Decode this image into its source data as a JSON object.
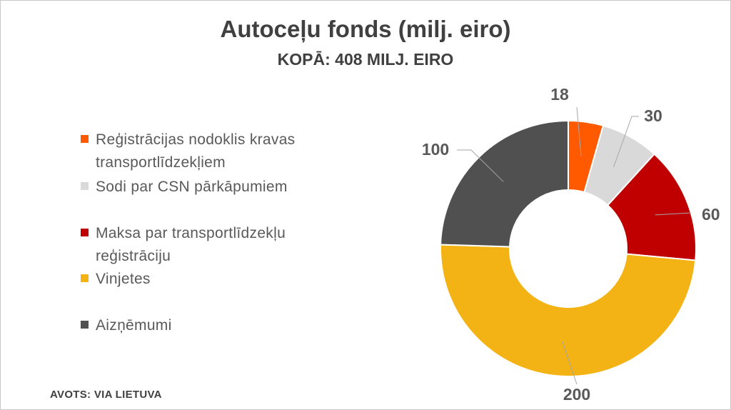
{
  "chart_data": {
    "type": "pie",
    "variant": "donut",
    "title": "Autoceļu fonds (milj. eiro)",
    "subtitle": "KOPĀ: 408 MILJ. EIRO",
    "series": [
      {
        "name": "Reģistrācijas nodoklis kravas transportlīdzekļiem",
        "value": 18,
        "color": "#ff5a00"
      },
      {
        "name": "Sodi par CSN pārkāpumiem",
        "value": 30,
        "color": "#d9d9d9"
      },
      {
        "name": "Maksa par transportlīdzekļu reģistrāciju",
        "value": 60,
        "color": "#c00000"
      },
      {
        "name": "Vinjetes",
        "value": 200,
        "color": "#f4b315"
      },
      {
        "name": "Aizņēmumi",
        "value": 100,
        "color": "#505050"
      }
    ],
    "data_labels": [
      "18",
      "30",
      "60",
      "200",
      "100"
    ],
    "legend_position": "left"
  },
  "source": "AVOTS: VIA LIETUVA"
}
